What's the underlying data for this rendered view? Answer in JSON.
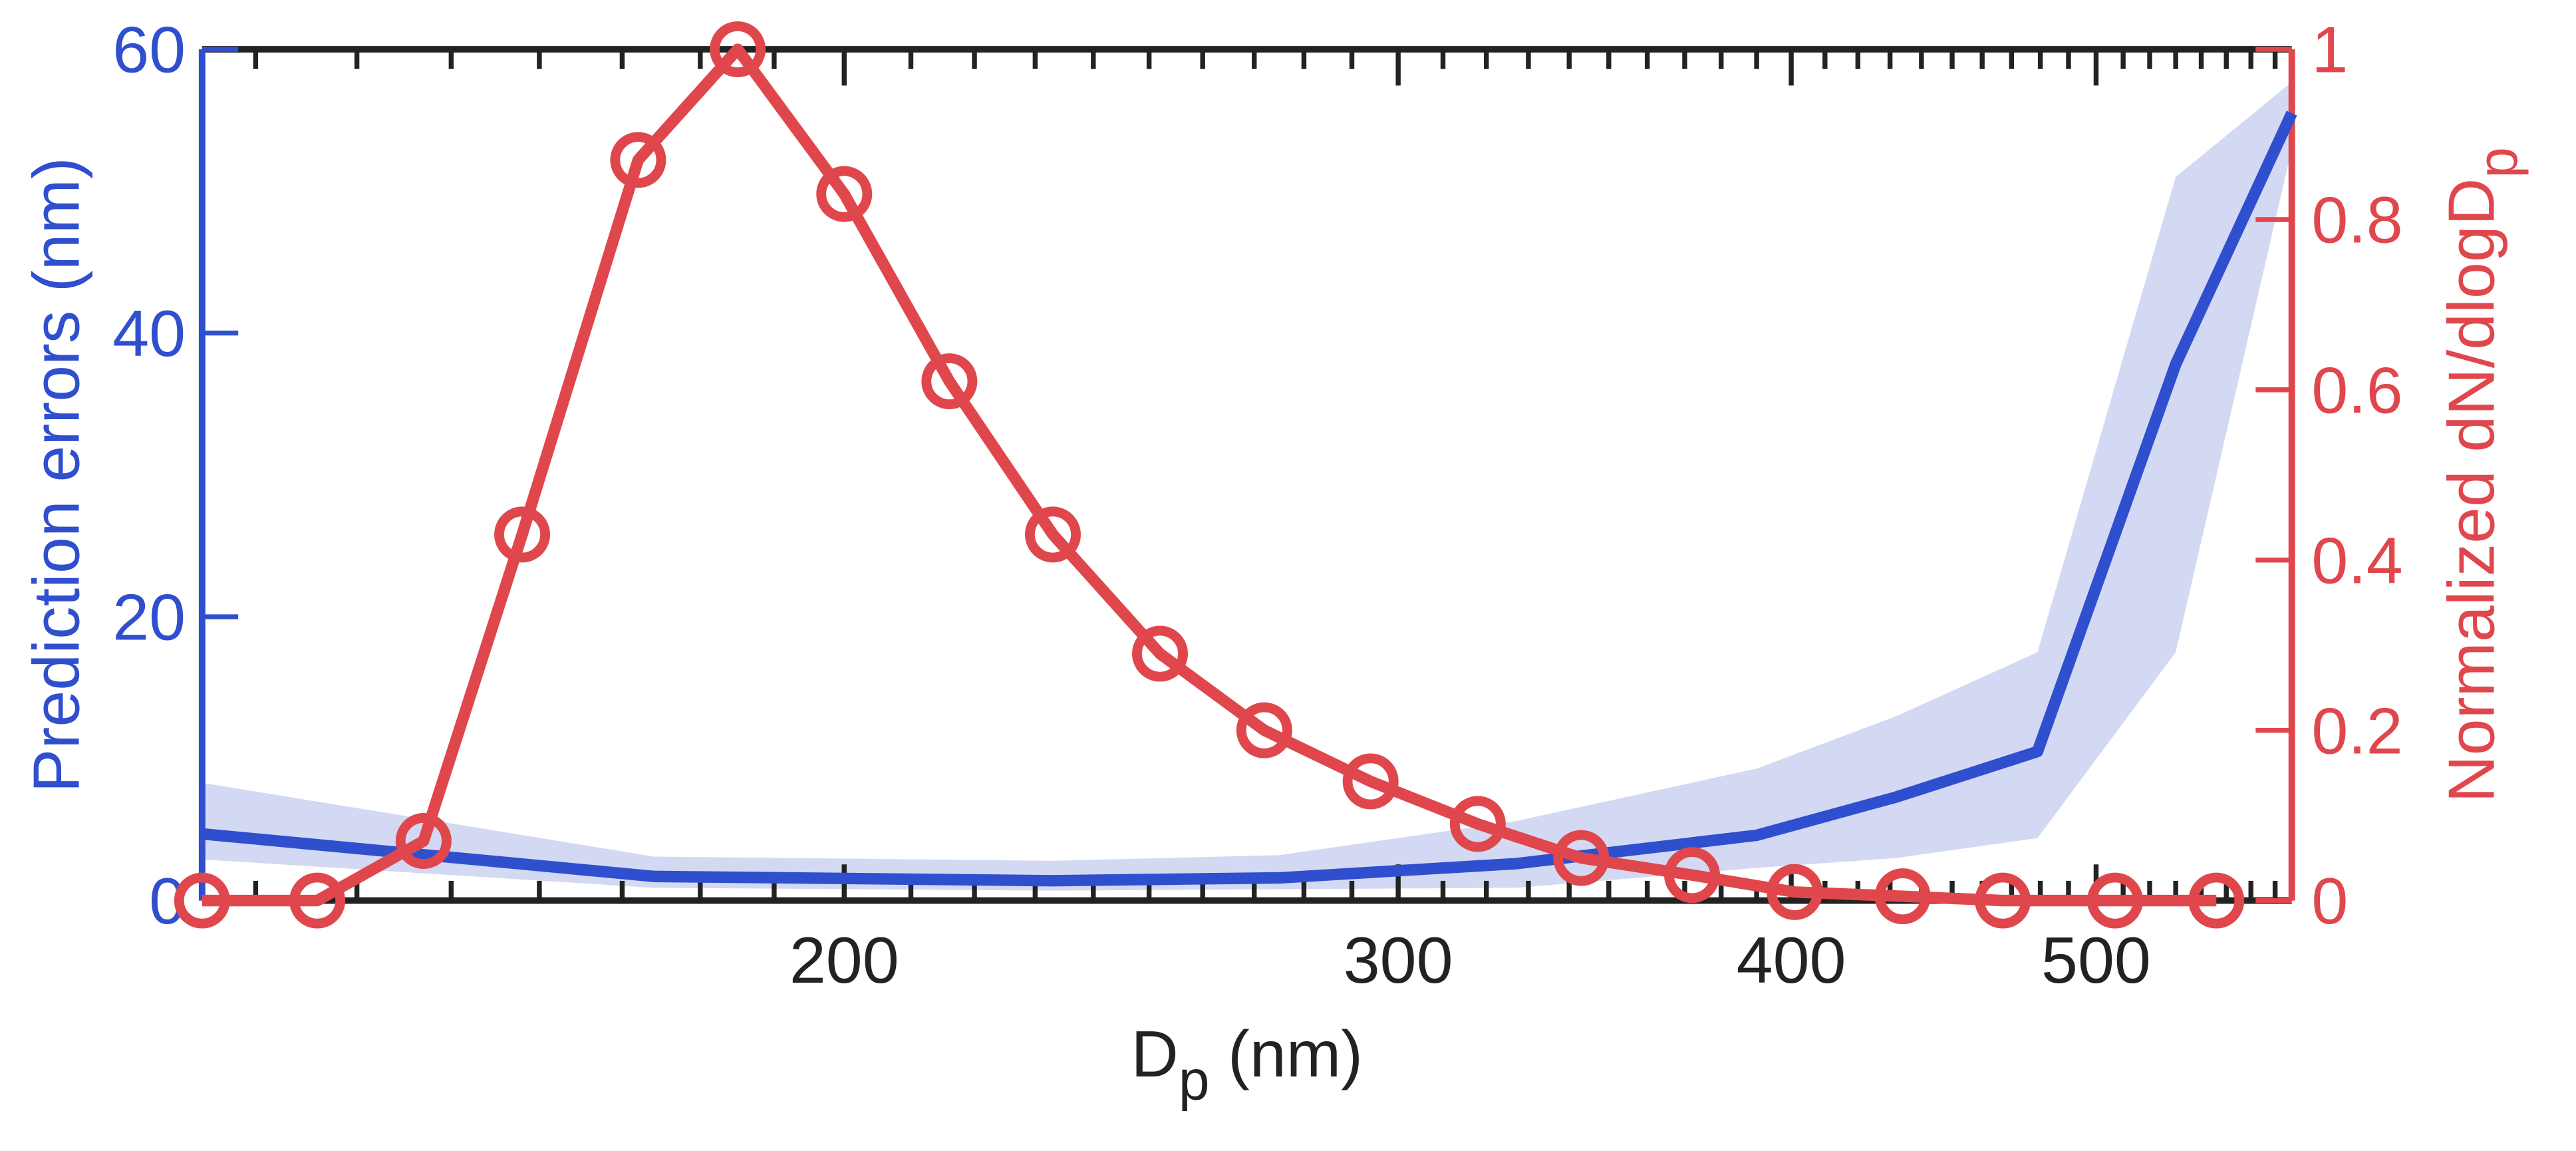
{
  "chart_data": {
    "type": "line",
    "xlabel": {
      "main": "D",
      "sub": "p",
      "rest": " (nm)"
    },
    "ylabel": "Prediction errors (nm)",
    "y2label": {
      "main": "Normalized dN/dlogD",
      "sub": "p"
    },
    "xscale": "log",
    "xlim": [
      125,
      577
    ],
    "xticks": [
      200,
      300,
      400,
      500
    ],
    "xminorticks": [
      130,
      140,
      150,
      160,
      170,
      180,
      190,
      210,
      220,
      230,
      240,
      250,
      260,
      270,
      280,
      290,
      310,
      320,
      330,
      340,
      350,
      360,
      370,
      380,
      390,
      410,
      420,
      430,
      440,
      450,
      460,
      470,
      480,
      490,
      510,
      520,
      530,
      540,
      550,
      560,
      570
    ],
    "ylim": [
      0,
      60
    ],
    "yticks": [
      0,
      20,
      40,
      60
    ],
    "y2lim": [
      0,
      1
    ],
    "y2ticks": [
      0,
      0.2,
      0.4,
      0.6,
      0.8,
      1
    ],
    "ycolor": "#2f4fce",
    "y2color": "#e0474c",
    "series": [
      {
        "color": "#2f4fce",
        "band_color": "#d3d9f2",
        "x": [
          125,
          174,
          233,
          275,
          327,
          390,
          432,
          479,
          530,
          577
        ],
        "values": [
          4.7,
          1.7,
          1.4,
          1.6,
          2.6,
          4.6,
          7.3,
          10.5,
          37.8,
          55.5
        ],
        "lower": [
          2.9,
          0.9,
          0.7,
          0.8,
          0.9,
          2.3,
          3,
          4.4,
          17.5,
          53
        ],
        "upper": [
          8.3,
          3.1,
          2.8,
          3.2,
          5.6,
          9.3,
          13,
          17.5,
          51,
          57.7
        ]
      },
      {
        "color": "#e0474c",
        "axis": "y2",
        "marker": "circle",
        "x": [
          125,
          136,
          147,
          158,
          172,
          185,
          200,
          216,
          233,
          252,
          272,
          294,
          318,
          343,
          372,
          401,
          434,
          467,
          507,
          546
        ],
        "values": [
          0,
          0,
          0.07,
          0.43,
          0.87,
          1,
          0.83,
          0.61,
          0.43,
          0.29,
          0.2,
          0.14,
          0.09,
          0.05,
          0.03,
          0.01,
          0.005,
          0,
          0,
          0
        ]
      }
    ]
  }
}
